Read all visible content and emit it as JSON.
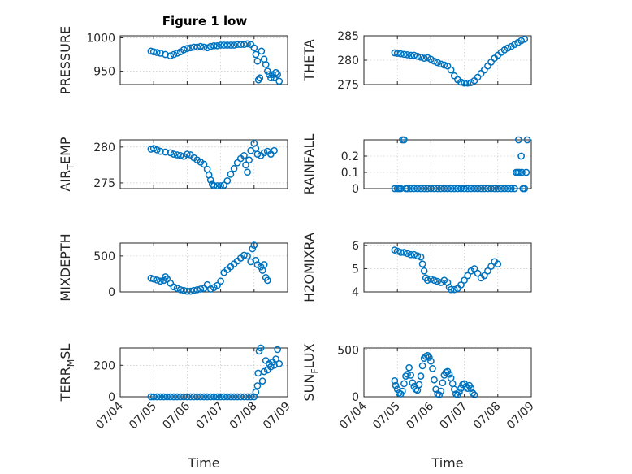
{
  "title": "Figure 1 low",
  "x_tick_labels": [
    "07/04",
    "07/05",
    "07/06",
    "07/07",
    "07/08",
    "07/09"
  ],
  "colors": {
    "series": "#0072BD",
    "axes": "#262626",
    "grid": "#bdbdbd"
  },
  "chart_data": [
    {
      "type": "scatter",
      "ylabel": "PRESSURE",
      "ylim": [
        930,
        1003
      ],
      "yticks": [
        950,
        1000
      ],
      "points": [
        [
          4.92,
          980
        ],
        [
          5.0,
          979
        ],
        [
          5.1,
          978
        ],
        [
          5.2,
          977
        ],
        [
          5.35,
          975
        ],
        [
          5.5,
          973
        ],
        [
          5.6,
          975
        ],
        [
          5.7,
          977
        ],
        [
          5.8,
          979
        ],
        [
          5.9,
          982
        ],
        [
          6.0,
          984
        ],
        [
          6.1,
          985
        ],
        [
          6.2,
          986
        ],
        [
          6.3,
          986
        ],
        [
          6.4,
          987
        ],
        [
          6.5,
          986
        ],
        [
          6.6,
          985
        ],
        [
          6.7,
          987
        ],
        [
          6.8,
          988
        ],
        [
          6.9,
          988
        ],
        [
          7.0,
          989
        ],
        [
          7.1,
          989
        ],
        [
          7.2,
          989
        ],
        [
          7.3,
          989
        ],
        [
          7.4,
          989
        ],
        [
          7.5,
          990
        ],
        [
          7.6,
          990
        ],
        [
          7.7,
          990
        ],
        [
          7.8,
          991
        ],
        [
          7.9,
          990
        ],
        [
          8.0,
          985
        ],
        [
          8.05,
          975
        ],
        [
          8.1,
          965
        ],
        [
          8.13,
          937
        ],
        [
          8.17,
          940
        ],
        [
          8.22,
          980
        ],
        [
          8.3,
          968
        ],
        [
          8.35,
          960
        ],
        [
          8.4,
          950
        ],
        [
          8.45,
          945
        ],
        [
          8.5,
          940
        ],
        [
          8.55,
          945
        ],
        [
          8.6,
          940
        ],
        [
          8.65,
          948
        ],
        [
          8.7,
          945
        ],
        [
          8.75,
          935
        ]
      ]
    },
    {
      "type": "scatter",
      "ylabel": "THETA",
      "ylim": [
        275,
        285
      ],
      "yticks": [
        275,
        280,
        285
      ],
      "points": [
        [
          4.92,
          281.5
        ],
        [
          5.0,
          281.4
        ],
        [
          5.1,
          281.3
        ],
        [
          5.2,
          281.2
        ],
        [
          5.3,
          281.1
        ],
        [
          5.4,
          281.0
        ],
        [
          5.5,
          281.0
        ],
        [
          5.6,
          280.8
        ],
        [
          5.7,
          280.6
        ],
        [
          5.8,
          280.4
        ],
        [
          5.9,
          280.5
        ],
        [
          6.0,
          280.2
        ],
        [
          6.1,
          279.8
        ],
        [
          6.2,
          279.5
        ],
        [
          6.3,
          279.2
        ],
        [
          6.4,
          279.0
        ],
        [
          6.5,
          278.8
        ],
        [
          6.6,
          278.0
        ],
        [
          6.7,
          276.8
        ],
        [
          6.8,
          276.0
        ],
        [
          6.9,
          275.5
        ],
        [
          7.0,
          275.3
        ],
        [
          7.1,
          275.3
        ],
        [
          7.2,
          275.4
        ],
        [
          7.3,
          275.8
        ],
        [
          7.4,
          276.5
        ],
        [
          7.5,
          277.3
        ],
        [
          7.6,
          278.0
        ],
        [
          7.7,
          278.8
        ],
        [
          7.8,
          279.6
        ],
        [
          7.9,
          280.4
        ],
        [
          8.0,
          281.0
        ],
        [
          8.1,
          281.6
        ],
        [
          8.2,
          282.1
        ],
        [
          8.3,
          282.5
        ],
        [
          8.4,
          282.8
        ],
        [
          8.5,
          283.2
        ],
        [
          8.6,
          283.6
        ],
        [
          8.7,
          284.0
        ],
        [
          8.8,
          284.3
        ]
      ]
    },
    {
      "type": "scatter",
      "ylabel": "AIR_TEMP",
      "ylim": [
        274.2,
        281
      ],
      "yticks": [
        275,
        280
      ],
      "points": [
        [
          4.92,
          279.7
        ],
        [
          5.0,
          279.8
        ],
        [
          5.1,
          279.6
        ],
        [
          5.2,
          279.4
        ],
        [
          5.35,
          279.3
        ],
        [
          5.5,
          279.2
        ],
        [
          5.6,
          279.0
        ],
        [
          5.7,
          278.9
        ],
        [
          5.8,
          278.8
        ],
        [
          5.9,
          278.7
        ],
        [
          6.0,
          279.0
        ],
        [
          6.1,
          278.9
        ],
        [
          6.2,
          278.5
        ],
        [
          6.3,
          278.2
        ],
        [
          6.4,
          277.9
        ],
        [
          6.5,
          277.6
        ],
        [
          6.6,
          276.9
        ],
        [
          6.65,
          276.1
        ],
        [
          6.7,
          275.4
        ],
        [
          6.75,
          274.8
        ],
        [
          6.8,
          274.6
        ],
        [
          6.9,
          274.6
        ],
        [
          7.0,
          274.6
        ],
        [
          7.1,
          274.7
        ],
        [
          7.2,
          275.3
        ],
        [
          7.3,
          276.2
        ],
        [
          7.4,
          277.0
        ],
        [
          7.5,
          277.8
        ],
        [
          7.6,
          278.4
        ],
        [
          7.7,
          278.8
        ],
        [
          7.75,
          277.5
        ],
        [
          7.8,
          276.5
        ],
        [
          7.85,
          278.2
        ],
        [
          7.9,
          279.5
        ],
        [
          8.0,
          280.5
        ],
        [
          8.05,
          279.8
        ],
        [
          8.1,
          279.0
        ],
        [
          8.2,
          278.8
        ],
        [
          8.3,
          279.2
        ],
        [
          8.4,
          279.4
        ],
        [
          8.5,
          279.0
        ],
        [
          8.6,
          279.5
        ]
      ]
    },
    {
      "type": "scatter",
      "ylabel": "RAINFALL",
      "ylim": [
        0,
        0.3
      ],
      "yticks": [
        0,
        0.1,
        0.2
      ],
      "points": [
        [
          4.92,
          0
        ],
        [
          5.0,
          0
        ],
        [
          5.05,
          0
        ],
        [
          5.1,
          0
        ],
        [
          5.15,
          0.3
        ],
        [
          5.2,
          0.3
        ],
        [
          5.25,
          0
        ],
        [
          5.3,
          0
        ],
        [
          5.4,
          0
        ],
        [
          5.5,
          0
        ],
        [
          5.6,
          0
        ],
        [
          5.7,
          0
        ],
        [
          5.8,
          0
        ],
        [
          5.9,
          0
        ],
        [
          6.0,
          0
        ],
        [
          6.1,
          0
        ],
        [
          6.2,
          0
        ],
        [
          6.3,
          0
        ],
        [
          6.4,
          0
        ],
        [
          6.5,
          0
        ],
        [
          6.6,
          0
        ],
        [
          6.7,
          0
        ],
        [
          6.8,
          0
        ],
        [
          6.9,
          0
        ],
        [
          7.0,
          0
        ],
        [
          7.1,
          0
        ],
        [
          7.2,
          0
        ],
        [
          7.3,
          0
        ],
        [
          7.4,
          0
        ],
        [
          7.5,
          0
        ],
        [
          7.6,
          0
        ],
        [
          7.7,
          0
        ],
        [
          7.8,
          0
        ],
        [
          7.9,
          0
        ],
        [
          8.0,
          0
        ],
        [
          8.1,
          0
        ],
        [
          8.2,
          0
        ],
        [
          8.3,
          0
        ],
        [
          8.4,
          0
        ],
        [
          8.5,
          0
        ],
        [
          8.55,
          0.1
        ],
        [
          8.6,
          0.1
        ],
        [
          8.62,
          0.3
        ],
        [
          8.65,
          0.1
        ],
        [
          8.7,
          0.2
        ],
        [
          8.72,
          0.1
        ],
        [
          8.75,
          0
        ],
        [
          8.8,
          0
        ],
        [
          8.85,
          0.1
        ],
        [
          8.88,
          0.3
        ]
      ]
    },
    {
      "type": "scatter",
      "ylabel": "MIXDEPTH",
      "ylim": [
        0,
        680
      ],
      "yticks": [
        0,
        500
      ],
      "points": [
        [
          4.92,
          190
        ],
        [
          5.0,
          180
        ],
        [
          5.1,
          165
        ],
        [
          5.2,
          150
        ],
        [
          5.3,
          160
        ],
        [
          5.35,
          210
        ],
        [
          5.4,
          180
        ],
        [
          5.5,
          120
        ],
        [
          5.6,
          70
        ],
        [
          5.7,
          50
        ],
        [
          5.8,
          30
        ],
        [
          5.9,
          20
        ],
        [
          6.0,
          10
        ],
        [
          6.1,
          10
        ],
        [
          6.2,
          20
        ],
        [
          6.3,
          30
        ],
        [
          6.4,
          40
        ],
        [
          6.5,
          50
        ],
        [
          6.6,
          100
        ],
        [
          6.7,
          40
        ],
        [
          6.8,
          60
        ],
        [
          6.9,
          90
        ],
        [
          7.0,
          150
        ],
        [
          7.1,
          270
        ],
        [
          7.2,
          310
        ],
        [
          7.3,
          350
        ],
        [
          7.4,
          390
        ],
        [
          7.5,
          430
        ],
        [
          7.6,
          470
        ],
        [
          7.7,
          510
        ],
        [
          7.8,
          500
        ],
        [
          7.9,
          420
        ],
        [
          7.95,
          600
        ],
        [
          8.0,
          650
        ],
        [
          8.05,
          440
        ],
        [
          8.1,
          380
        ],
        [
          8.2,
          350
        ],
        [
          8.25,
          300
        ],
        [
          8.3,
          380
        ],
        [
          8.35,
          200
        ],
        [
          8.4,
          160
        ]
      ]
    },
    {
      "type": "scatter",
      "ylabel": "H2OMIXRA",
      "ylim": [
        4,
        6.1
      ],
      "yticks": [
        4,
        5,
        6
      ],
      "points": [
        [
          4.92,
          5.8
        ],
        [
          5.0,
          5.75
        ],
        [
          5.1,
          5.7
        ],
        [
          5.2,
          5.7
        ],
        [
          5.3,
          5.65
        ],
        [
          5.4,
          5.6
        ],
        [
          5.5,
          5.6
        ],
        [
          5.6,
          5.55
        ],
        [
          5.7,
          5.5
        ],
        [
          5.75,
          5.2
        ],
        [
          5.8,
          4.9
        ],
        [
          5.85,
          4.6
        ],
        [
          5.9,
          4.5
        ],
        [
          6.0,
          4.55
        ],
        [
          6.1,
          4.5
        ],
        [
          6.2,
          4.45
        ],
        [
          6.3,
          4.4
        ],
        [
          6.4,
          4.5
        ],
        [
          6.5,
          4.4
        ],
        [
          6.55,
          4.2
        ],
        [
          6.6,
          4.1
        ],
        [
          6.7,
          4.1
        ],
        [
          6.8,
          4.15
        ],
        [
          6.9,
          4.3
        ],
        [
          7.0,
          4.5
        ],
        [
          7.1,
          4.7
        ],
        [
          7.2,
          4.9
        ],
        [
          7.3,
          5.0
        ],
        [
          7.4,
          4.8
        ],
        [
          7.5,
          4.6
        ],
        [
          7.6,
          4.7
        ],
        [
          7.7,
          4.9
        ],
        [
          7.8,
          5.1
        ],
        [
          7.9,
          5.3
        ],
        [
          8.0,
          5.2
        ]
      ]
    },
    {
      "type": "scatter",
      "ylabel": "TERR_MSL",
      "ylim": [
        0,
        310
      ],
      "yticks": [
        0,
        200
      ],
      "points": [
        [
          4.92,
          0
        ],
        [
          5.0,
          0
        ],
        [
          5.1,
          0
        ],
        [
          5.2,
          0
        ],
        [
          5.3,
          0
        ],
        [
          5.4,
          0
        ],
        [
          5.5,
          0
        ],
        [
          5.6,
          0
        ],
        [
          5.7,
          0
        ],
        [
          5.8,
          0
        ],
        [
          5.9,
          0
        ],
        [
          6.0,
          0
        ],
        [
          6.1,
          0
        ],
        [
          6.2,
          0
        ],
        [
          6.3,
          0
        ],
        [
          6.4,
          0
        ],
        [
          6.5,
          0
        ],
        [
          6.6,
          0
        ],
        [
          6.7,
          0
        ],
        [
          6.8,
          0
        ],
        [
          6.9,
          0
        ],
        [
          7.0,
          0
        ],
        [
          7.1,
          0
        ],
        [
          7.2,
          0
        ],
        [
          7.3,
          0
        ],
        [
          7.4,
          0
        ],
        [
          7.5,
          0
        ],
        [
          7.6,
          0
        ],
        [
          7.7,
          0
        ],
        [
          7.8,
          0
        ],
        [
          7.9,
          0
        ],
        [
          8.0,
          0
        ],
        [
          8.05,
          30
        ],
        [
          8.1,
          70
        ],
        [
          8.12,
          150
        ],
        [
          8.15,
          290
        ],
        [
          8.2,
          310
        ],
        [
          8.25,
          100
        ],
        [
          8.3,
          160
        ],
        [
          8.35,
          230
        ],
        [
          8.4,
          170
        ],
        [
          8.45,
          210
        ],
        [
          8.5,
          190
        ],
        [
          8.55,
          220
        ],
        [
          8.6,
          200
        ],
        [
          8.65,
          240
        ],
        [
          8.7,
          300
        ],
        [
          8.75,
          210
        ]
      ]
    },
    {
      "type": "scatter",
      "ylabel": "SUN_FLUX",
      "ylim": [
        0,
        520
      ],
      "yticks": [
        0,
        500
      ],
      "points": [
        [
          4.92,
          170
        ],
        [
          4.95,
          120
        ],
        [
          5.0,
          80
        ],
        [
          5.05,
          40
        ],
        [
          5.1,
          30
        ],
        [
          5.15,
          60
        ],
        [
          5.2,
          140
        ],
        [
          5.25,
          220
        ],
        [
          5.3,
          240
        ],
        [
          5.35,
          310
        ],
        [
          5.4,
          230
        ],
        [
          5.45,
          150
        ],
        [
          5.5,
          110
        ],
        [
          5.55,
          80
        ],
        [
          5.6,
          70
        ],
        [
          5.65,
          130
        ],
        [
          5.7,
          220
        ],
        [
          5.75,
          330
        ],
        [
          5.8,
          410
        ],
        [
          5.85,
          430
        ],
        [
          5.9,
          440
        ],
        [
          5.95,
          420
        ],
        [
          6.0,
          380
        ],
        [
          6.05,
          300
        ],
        [
          6.1,
          180
        ],
        [
          6.15,
          80
        ],
        [
          6.2,
          30
        ],
        [
          6.25,
          20
        ],
        [
          6.3,
          60
        ],
        [
          6.35,
          150
        ],
        [
          6.4,
          230
        ],
        [
          6.45,
          260
        ],
        [
          6.5,
          270
        ],
        [
          6.55,
          240
        ],
        [
          6.6,
          200
        ],
        [
          6.65,
          140
        ],
        [
          6.7,
          80
        ],
        [
          6.75,
          30
        ],
        [
          6.8,
          20
        ],
        [
          6.85,
          50
        ],
        [
          6.9,
          90
        ],
        [
          6.95,
          130
        ],
        [
          7.0,
          140
        ],
        [
          7.05,
          110
        ],
        [
          7.1,
          90
        ],
        [
          7.15,
          120
        ],
        [
          7.2,
          90
        ],
        [
          7.25,
          40
        ],
        [
          7.3,
          20
        ]
      ]
    }
  ]
}
